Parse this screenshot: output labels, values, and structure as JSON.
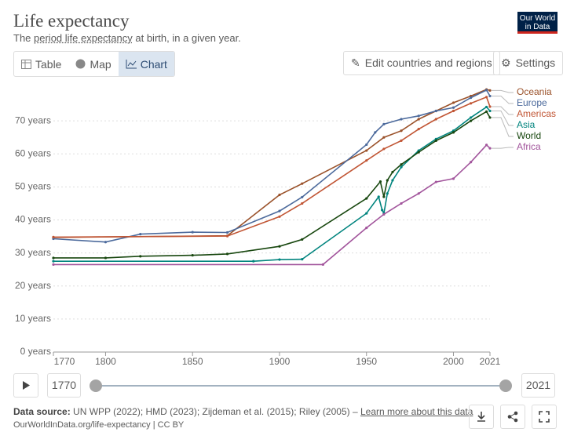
{
  "header": {
    "title": "Life expectancy",
    "subtitle": [
      "The ",
      "period life expectancy",
      " at birth, in a given year."
    ],
    "logo": "Our World in Data"
  },
  "tabs": [
    "Table",
    "Map",
    "Chart"
  ],
  "buttons": [
    "Edit countries and regions",
    "Settings"
  ],
  "chart_data": {
    "type": "line",
    "xlim": [
      1770,
      2021
    ],
    "xticks": [
      1770,
      1800,
      1850,
      1900,
      1950,
      2000,
      2021
    ],
    "ylim": [
      0,
      80
    ],
    "yticks": [
      {
        "value": 0,
        "label": "0 years"
      },
      {
        "value": 10,
        "label": "10 years"
      },
      {
        "value": 20,
        "label": "20 years"
      },
      {
        "value": 30,
        "label": "30 years"
      },
      {
        "value": 40,
        "label": "40 years"
      },
      {
        "value": 50,
        "label": "50 years"
      },
      {
        "value": 60,
        "label": "60 years"
      },
      {
        "value": 70,
        "label": "70 years"
      }
    ],
    "grid": true,
    "series": [
      {
        "name": "Oceania",
        "color": "#9a5129",
        "x": [
          1770,
          1870,
          1900,
          1913,
          1950,
          1960,
          1970,
          1980,
          1990,
          2000,
          2010,
          2019,
          2021
        ],
        "values": [
          34.7,
          35.2,
          47.6,
          51,
          61,
          65,
          67,
          70.5,
          73,
          75.5,
          77.5,
          79.5,
          79.2
        ]
      },
      {
        "name": "Europe",
        "color": "#4c6a9c",
        "x": [
          1770,
          1800,
          1820,
          1850,
          1870,
          1900,
          1913,
          1950,
          1955,
          1960,
          1970,
          1980,
          1990,
          2000,
          2010,
          2019,
          2021
        ],
        "values": [
          34.3,
          33.3,
          35.7,
          36.3,
          36.2,
          42.7,
          46.9,
          62.8,
          66.5,
          69,
          70.5,
          71.5,
          73,
          74,
          77,
          79.3,
          77.5
        ]
      },
      {
        "name": "Americas",
        "color": "#c15534",
        "x": [
          1770,
          1870,
          1900,
          1913,
          1950,
          1960,
          1970,
          1980,
          1990,
          2000,
          2010,
          2019,
          2021
        ],
        "values": [
          34.8,
          35.1,
          41,
          45,
          58,
          61.5,
          64,
          67.5,
          70.5,
          73,
          75.3,
          77.2,
          74.3
        ]
      },
      {
        "name": "Asia",
        "color": "#00847e",
        "x": [
          1770,
          1885,
          1900,
          1913,
          1950,
          1957,
          1959,
          1960,
          1962,
          1965,
          1970,
          1980,
          1990,
          2000,
          2010,
          2019,
          2021
        ],
        "values": [
          27.5,
          27.5,
          28,
          28.1,
          42,
          47,
          43,
          42,
          48,
          52,
          56,
          61,
          64.5,
          67,
          71,
          74.2,
          73
        ]
      },
      {
        "name": "World",
        "color": "#18470f",
        "x": [
          1770,
          1800,
          1820,
          1850,
          1870,
          1900,
          1913,
          1950,
          1958,
          1960,
          1962,
          1965,
          1970,
          1980,
          1990,
          2000,
          2010,
          2019,
          2021
        ],
        "values": [
          28.5,
          28.5,
          29,
          29.3,
          29.7,
          32,
          34.1,
          46.5,
          51.6,
          47,
          52,
          54.5,
          56.8,
          60.5,
          64,
          66.5,
          70,
          72.8,
          71
        ]
      },
      {
        "name": "Africa",
        "color": "#a2559c",
        "x": [
          1770,
          1925,
          1950,
          1960,
          1970,
          1980,
          1990,
          2000,
          2010,
          2019,
          2021
        ],
        "values": [
          26.5,
          26.5,
          37.6,
          41.7,
          45,
          48,
          51.5,
          52.5,
          57.5,
          62.7,
          61.7
        ]
      }
    ]
  },
  "timeline": {
    "start": "1770",
    "end": "2021"
  },
  "footer": {
    "label": "Data source:",
    "source": " UN WPP (2022); HMD (2023); Zijdeman et al. (2015); Riley (2005) – ",
    "link": "Learn more about this data",
    "url": "OurWorldInData.org/life-expectancy | CC BY"
  }
}
